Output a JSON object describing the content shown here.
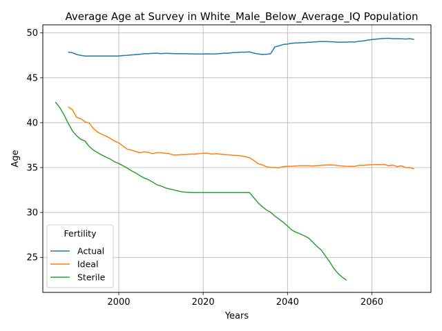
{
  "chart_data": {
    "type": "line",
    "title": "Average Age at Survey in White_Male_Below_Average_IQ Population",
    "xlabel": "Years",
    "ylabel": "Age",
    "xlim": [
      1982,
      2074
    ],
    "ylim": [
      21.1,
      50.9
    ],
    "xticks": [
      2000,
      2020,
      2040,
      2060
    ],
    "yticks": [
      25,
      30,
      35,
      40,
      45,
      50
    ],
    "grid": true,
    "legend": {
      "title": "Fertility",
      "placement": "lower-left"
    },
    "series": [
      {
        "name": "Actual",
        "color": "#1f77b4",
        "x": [
          1988,
          1989,
          1990,
          1991,
          1992,
          1993,
          1994,
          1995,
          1996,
          1997,
          1998,
          1999,
          2000,
          2001,
          2002,
          2003,
          2004,
          2005,
          2006,
          2007,
          2008,
          2009,
          2010,
          2011,
          2012,
          2013,
          2014,
          2015,
          2016,
          2017,
          2018,
          2019,
          2020,
          2021,
          2022,
          2023,
          2024,
          2025,
          2026,
          2027,
          2028,
          2029,
          2030,
          2031,
          2032,
          2033,
          2034,
          2035,
          2036,
          2037,
          2038,
          2039,
          2040,
          2041,
          2042,
          2043,
          2044,
          2045,
          2046,
          2047,
          2048,
          2049,
          2050,
          2051,
          2052,
          2053,
          2054,
          2055,
          2056,
          2057,
          2058,
          2059,
          2060,
          2061,
          2062,
          2063,
          2064,
          2065,
          2066,
          2067,
          2068,
          2069,
          2070
        ],
        "y": [
          47.85,
          47.8,
          47.6,
          47.5,
          47.42,
          47.42,
          47.42,
          47.42,
          47.42,
          47.42,
          47.42,
          47.42,
          47.42,
          47.48,
          47.5,
          47.55,
          47.58,
          47.62,
          47.68,
          47.7,
          47.72,
          47.74,
          47.7,
          47.72,
          47.72,
          47.7,
          47.68,
          47.68,
          47.68,
          47.67,
          47.65,
          47.65,
          47.66,
          47.67,
          47.66,
          47.67,
          47.7,
          47.74,
          47.74,
          47.8,
          47.82,
          47.86,
          47.86,
          47.88,
          47.75,
          47.66,
          47.6,
          47.62,
          47.68,
          48.45,
          48.55,
          48.72,
          48.76,
          48.84,
          48.88,
          48.9,
          48.92,
          48.96,
          48.98,
          49.02,
          49.04,
          49.04,
          49.02,
          49.0,
          48.96,
          48.97,
          48.97,
          49.0,
          48.98,
          49.08,
          49.1,
          49.2,
          49.26,
          49.3,
          49.36,
          49.38,
          49.4,
          49.36,
          49.36,
          49.34,
          49.32,
          49.36,
          49.28
        ]
      },
      {
        "name": "Ideal",
        "color": "#ff7f0e",
        "x": [
          1988,
          1989,
          1990,
          1991,
          1992,
          1993,
          1994,
          1995,
          1996,
          1997,
          1998,
          1999,
          2000,
          2001,
          2002,
          2003,
          2004,
          2005,
          2006,
          2007,
          2008,
          2009,
          2010,
          2011,
          2012,
          2013,
          2014,
          2015,
          2016,
          2017,
          2018,
          2019,
          2020,
          2021,
          2022,
          2023,
          2024,
          2025,
          2026,
          2027,
          2028,
          2029,
          2030,
          2031,
          2032,
          2033,
          2034,
          2035,
          2036,
          2037,
          2038,
          2039,
          2040,
          2041,
          2042,
          2043,
          2044,
          2045,
          2046,
          2047,
          2048,
          2049,
          2050,
          2051,
          2052,
          2053,
          2054,
          2055,
          2056,
          2057,
          2058,
          2059,
          2060,
          2061,
          2062,
          2063,
          2064,
          2065,
          2066,
          2067,
          2068,
          2069,
          2070
        ],
        "y": [
          41.75,
          41.45,
          40.6,
          40.45,
          40.1,
          39.95,
          39.35,
          38.95,
          38.7,
          38.5,
          38.25,
          37.95,
          37.75,
          37.4,
          37.05,
          36.95,
          36.8,
          36.65,
          36.75,
          36.7,
          36.55,
          36.65,
          36.65,
          36.6,
          36.55,
          36.4,
          36.4,
          36.45,
          36.45,
          36.5,
          36.5,
          36.55,
          36.6,
          36.6,
          36.5,
          36.55,
          36.5,
          36.45,
          36.42,
          36.38,
          36.35,
          36.3,
          36.22,
          36.1,
          35.8,
          35.45,
          35.3,
          35.1,
          35.02,
          35.0,
          34.98,
          35.1,
          35.15,
          35.15,
          35.18,
          35.2,
          35.2,
          35.2,
          35.18,
          35.22,
          35.25,
          35.28,
          35.3,
          35.28,
          35.22,
          35.18,
          35.15,
          35.14,
          35.14,
          35.25,
          35.25,
          35.3,
          35.32,
          35.35,
          35.33,
          35.35,
          35.2,
          35.28,
          35.1,
          35.2,
          35.0,
          35.0,
          34.85
        ]
      },
      {
        "name": "Sterile",
        "color": "#2ca02c",
        "x": [
          1985,
          1986,
          1987,
          1988,
          1989,
          1990,
          1991,
          1992,
          1993,
          1994,
          1995,
          1996,
          1997,
          1998,
          1999,
          2000,
          2001,
          2002,
          2003,
          2004,
          2005,
          2006,
          2007,
          2008,
          2009,
          2010,
          2011,
          2012,
          2013,
          2014,
          2015,
          2016,
          2017,
          2018,
          2019,
          2020,
          2021,
          2022,
          2023,
          2024,
          2025,
          2026,
          2027,
          2028,
          2029,
          2030,
          2031,
          2032,
          2033,
          2034,
          2035,
          2036,
          2037,
          2038,
          2039,
          2040,
          2041,
          2042,
          2043,
          2044,
          2045,
          2046,
          2047,
          2048,
          2049,
          2050,
          2051,
          2052,
          2053,
          2054
        ],
        "y": [
          42.3,
          41.7,
          40.9,
          39.95,
          39.1,
          38.55,
          38.15,
          37.95,
          37.35,
          36.95,
          36.65,
          36.4,
          36.15,
          35.95,
          35.65,
          35.45,
          35.2,
          34.95,
          34.65,
          34.4,
          34.1,
          33.85,
          33.65,
          33.4,
          33.1,
          32.95,
          32.75,
          32.62,
          32.52,
          32.4,
          32.3,
          32.26,
          32.22,
          32.22,
          32.22,
          32.22,
          32.22,
          32.22,
          32.22,
          32.22,
          32.22,
          32.22,
          32.22,
          32.22,
          32.22,
          32.22,
          32.22,
          31.65,
          31.1,
          30.65,
          30.28,
          30.02,
          29.6,
          29.25,
          28.9,
          28.5,
          28.05,
          27.8,
          27.62,
          27.4,
          27.15,
          26.7,
          26.2,
          25.82,
          25.15,
          24.5,
          23.75,
          23.2,
          22.78,
          22.45
        ]
      }
    ]
  }
}
